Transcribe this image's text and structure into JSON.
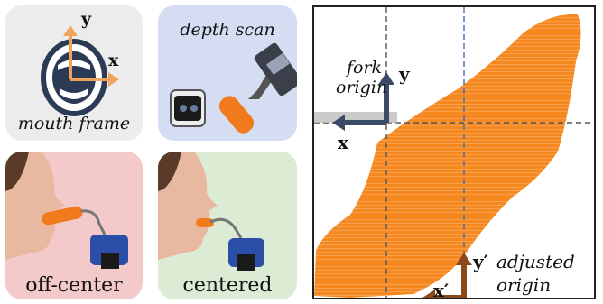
{
  "panels": {
    "mouth": {
      "caption": "mouth frame",
      "x_label": "x",
      "y_label": "y"
    },
    "depth": {
      "caption": "depth scan"
    },
    "off_center": {
      "caption": "off-center"
    },
    "centered": {
      "caption": "centered"
    }
  },
  "pointcloud": {
    "fork_label_1": "fork",
    "fork_label_2": "origin",
    "fork_x": "x",
    "fork_y": "y",
    "adj_x": "x′",
    "adj_y": "y′",
    "adj_label_1": "adjusted",
    "adj_label_2": "origin"
  },
  "colors": {
    "orange": "#f5891f",
    "arrow_dark": "#3b4a66",
    "arrow_brown": "#8b4a1c",
    "arrow_orange": "#f0a35a"
  }
}
